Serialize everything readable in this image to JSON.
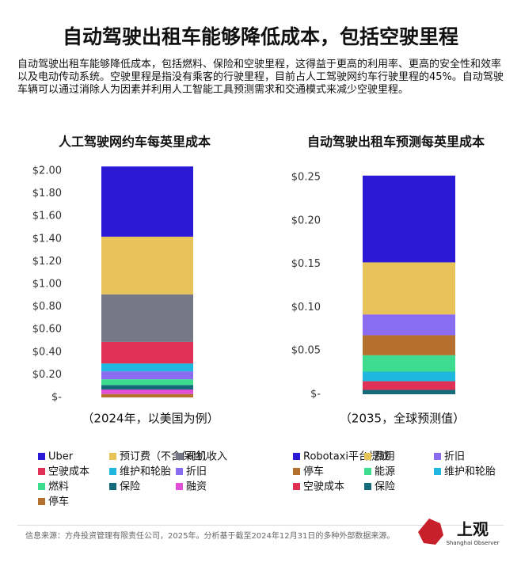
{
  "header": {
    "title": "自动驾驶出租车能够降低成本，包括空驶里程",
    "description": "自动驾驶出租车能够降低成本，包括燃料、保险和空驶里程，这得益于更高的利用率、更高的安全性和效率以及电动传动系统。空驶里程是指没有乘客的行驶里程，目前占人工驾驶网约车行驶里程的45%。自动驾驶车辆可以通过消除人为因素并利用人工智能工具预测需求和交通模式来减少空驶里程。"
  },
  "chart_data": [
    {
      "type": "stacked_bar",
      "title": "人工驾驶网约车每英里成本",
      "caption": "（2024年，以美国为例）",
      "ylim": [
        0,
        2
      ],
      "yticks": [
        {
          "value": 0,
          "label": "$-"
        },
        {
          "value": 0.2,
          "label": "$0.20"
        },
        {
          "value": 0.4,
          "label": "$0.40"
        },
        {
          "value": 0.6,
          "label": "$0.60"
        },
        {
          "value": 0.8,
          "label": "$0.80"
        },
        {
          "value": 1,
          "label": "$1.00"
        },
        {
          "value": 1.2,
          "label": "$1.20"
        },
        {
          "value": 1.4,
          "label": "$1.40"
        },
        {
          "value": 1.6,
          "label": "$1.60"
        },
        {
          "value": 1.8,
          "label": "$1.80"
        },
        {
          "value": 2,
          "label": "$2.00"
        }
      ],
      "series": [
        {
          "name": "Uber",
          "color": "#2a1ad6",
          "values": [
            0.62
          ]
        },
        {
          "name": "预订费（不含保险）",
          "color": "#e8c35a",
          "values": [
            0.51
          ]
        },
        {
          "name": "司机收入",
          "color": "#767887",
          "values": [
            0.42
          ]
        },
        {
          "name": "空驶成本",
          "color": "#e03056",
          "values": [
            0.19
          ]
        },
        {
          "name": "维护和轮胎",
          "color": "#1fb6e0",
          "values": [
            0.07
          ]
        },
        {
          "name": "折旧",
          "color": "#8a6cf0",
          "values": [
            0.07
          ]
        },
        {
          "name": "燃料",
          "color": "#3ddc8e",
          "values": [
            0.05
          ]
        },
        {
          "name": "保险",
          "color": "#146b7a",
          "values": [
            0.04
          ]
        },
        {
          "name": "融资",
          "color": "#e04ed8",
          "values": [
            0.04
          ]
        },
        {
          "name": "停车",
          "color": "#b5702e",
          "values": [
            0.03
          ]
        }
      ]
    },
    {
      "type": "stacked_bar",
      "title": "自动驾驶出租车预测每英里成本",
      "caption": "（2035，全球预测值）",
      "ylim": [
        0,
        0.25
      ],
      "yticks": [
        {
          "value": 0,
          "label": "$-"
        },
        {
          "value": 0.05,
          "label": "$0.05"
        },
        {
          "value": 0.1,
          "label": "$0.10"
        },
        {
          "value": 0.15,
          "label": "$0.15"
        },
        {
          "value": 0.2,
          "label": "$0.20"
        },
        {
          "value": 0.25,
          "label": "$0.25"
        }
      ],
      "series": [
        {
          "name": "Robotaxi平台提成",
          "color": "#2a1ad6",
          "values": [
            0.1
          ]
        },
        {
          "name": "费用",
          "color": "#e8c35a",
          "values": [
            0.06
          ]
        },
        {
          "name": "折旧",
          "color": "#8a6cf0",
          "values": [
            0.024
          ]
        },
        {
          "name": "停车",
          "color": "#b5702e",
          "values": [
            0.023
          ]
        },
        {
          "name": "能源",
          "color": "#3ddc8e",
          "values": [
            0.019
          ]
        },
        {
          "name": "维护和轮胎",
          "color": "#1fb6e0",
          "values": [
            0.011
          ]
        },
        {
          "name": "空驶成本",
          "color": "#e03056",
          "values": [
            0.01
          ]
        },
        {
          "name": "保险",
          "color": "#146b7a",
          "values": [
            0.005
          ]
        }
      ]
    }
  ],
  "footer": {
    "source": "信息来源：方舟投资管理有限责任公司，2025年。分析基于截至2024年12月31日的多种外部数据来源。",
    "logo": "上观",
    "logo_sub": "Shanghai Observer"
  }
}
